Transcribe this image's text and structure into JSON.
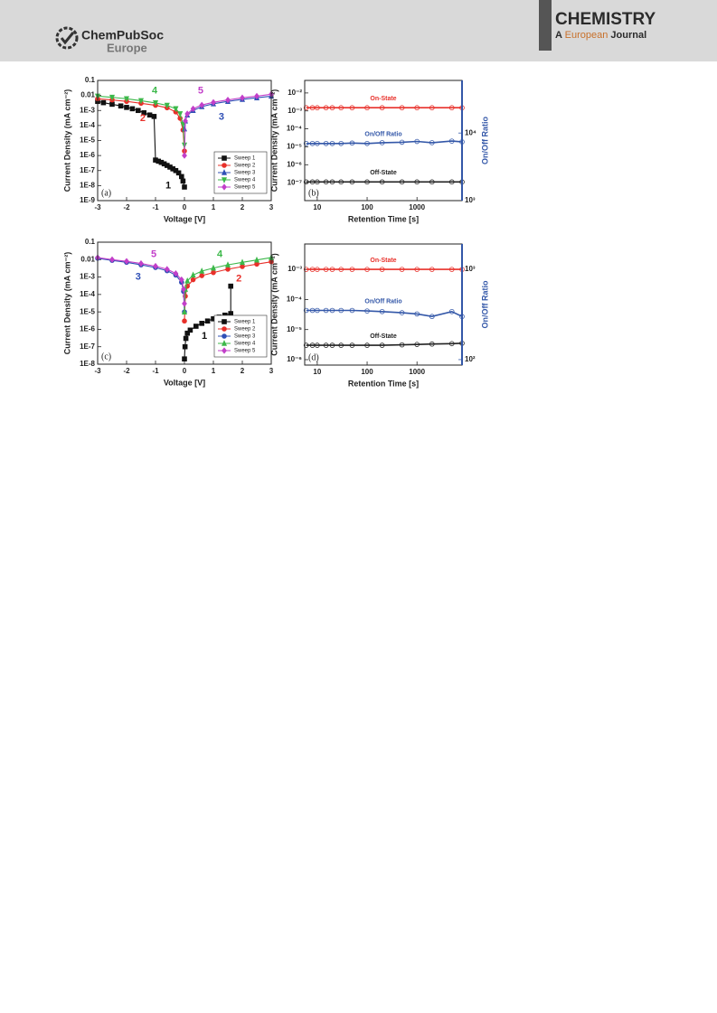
{
  "header": {
    "logo_line1": "ChemPubSoc",
    "logo_line2": "Europe",
    "journal_title": "CHEMISTRY",
    "journal_sub_a": "A",
    "journal_sub_b": "European",
    "journal_sub_c": "Journal"
  },
  "chart_data": [
    {
      "type": "line",
      "panel_label": "(a)",
      "xlabel": "Voltage [V]",
      "ylabel": "Current Density (mA cm⁻²)",
      "xlim": [
        -3,
        3
      ],
      "xticks": [
        -3,
        -2,
        -1,
        0,
        1,
        2,
        3
      ],
      "ylim": [
        1e-09,
        0.1
      ],
      "yscale": "log",
      "yticks": [
        0.1,
        0.01,
        {
          "value": 0.001,
          "label": "1E-3"
        },
        {
          "value": 0.0001,
          "label": "1E-4"
        },
        {
          "value": 1e-05,
          "label": "1E-5"
        },
        {
          "value": 1e-06,
          "label": "1E-6"
        },
        {
          "value": 1e-07,
          "label": "1E-7"
        },
        {
          "value": 1e-08,
          "label": "1E-8"
        },
        {
          "value": 1e-09,
          "label": "1E-9"
        }
      ],
      "legend": "lower right",
      "series": [
        {
          "name": "Sweep 1",
          "color": "#111111",
          "marker": "square",
          "x": [
            0,
            -0.05,
            -0.1,
            -0.2,
            -0.3,
            -0.4,
            -0.5,
            -0.6,
            -0.7,
            -0.8,
            -0.9,
            -1.0,
            -1.05,
            -1.2,
            -1.4,
            -1.6,
            -1.8,
            -2.0,
            -2.2,
            -2.5,
            -2.8,
            -3.0
          ],
          "values": [
            8e-09,
            2e-08,
            4e-08,
            7e-08,
            1e-07,
            1.3e-07,
            1.7e-07,
            2.2e-07,
            2.8e-07,
            3.5e-07,
            4.2e-07,
            5e-07,
            0.0004,
            0.0005,
            0.0007,
            0.001,
            0.0013,
            0.0016,
            0.002,
            0.0026,
            0.0033,
            0.004
          ]
        },
        {
          "name": "Sweep 2",
          "color": "#e8302a",
          "marker": "circle",
          "x": [
            -3,
            -2.5,
            -2,
            -1.5,
            -1,
            -0.6,
            -0.3,
            -0.15,
            -0.05,
            0
          ],
          "values": [
            0.006,
            0.005,
            0.004,
            0.003,
            0.0022,
            0.0015,
            0.0008,
            0.0003,
            5e-05,
            2e-06
          ]
        },
        {
          "name": "Sweep 3",
          "color": "#2f4fb5",
          "marker": "triangle-up",
          "x": [
            0,
            0.03,
            0.1,
            0.3,
            0.6,
            1,
            1.5,
            2,
            2.5,
            3
          ],
          "values": [
            6e-05,
            0.0002,
            0.0005,
            0.001,
            0.0018,
            0.0028,
            0.004,
            0.0055,
            0.007,
            0.009
          ]
        },
        {
          "name": "Sweep 4",
          "color": "#3cb84a",
          "marker": "triangle-down",
          "x": [
            -3,
            -2.5,
            -2,
            -1.5,
            -1,
            -0.6,
            -0.3,
            -0.15,
            -0.05,
            0
          ],
          "values": [
            0.009,
            0.0075,
            0.006,
            0.0045,
            0.0032,
            0.0022,
            0.0013,
            0.0006,
            0.00012,
            5e-06
          ]
        },
        {
          "name": "Sweep 5",
          "color": "#c23fc9",
          "marker": "diamond",
          "x": [
            0,
            0.03,
            0.1,
            0.3,
            0.6,
            1,
            1.5,
            2,
            2.5,
            3
          ],
          "values": [
            1e-06,
            0.0002,
            0.0006,
            0.0013,
            0.0023,
            0.0035,
            0.005,
            0.007,
            0.009,
            0.012
          ]
        }
      ],
      "annotations": [
        {
          "text": "1",
          "x": -0.56,
          "y": 1e-08,
          "color": "#111111"
        },
        {
          "text": "2",
          "x": -1.44,
          "y": 0.0003,
          "color": "#e8302a"
        },
        {
          "text": "3",
          "x": 1.28,
          "y": 0.00035,
          "color": "#2f4fb5"
        },
        {
          "text": "4",
          "x": -1.03,
          "y": 0.02,
          "color": "#3cb84a"
        },
        {
          "text": "5",
          "x": 0.56,
          "y": 0.02,
          "color": "#c23fc9"
        }
      ]
    },
    {
      "type": "retention",
      "panel_label": "(b)",
      "xlabel": "Retention Time [s]",
      "ylabel": "Current Density (mA cm⁻²)",
      "y2label": "On/Off Ratio",
      "xscale": "log",
      "xlim": [
        5.6,
        8000
      ],
      "xticks": [
        10,
        100,
        1000
      ],
      "yscale": "log",
      "ylim": [
        1e-08,
        0.05
      ],
      "yticks": [
        {
          "value": 0.01,
          "label": "10⁻²"
        },
        {
          "value": 0.001,
          "label": "10⁻³"
        },
        {
          "value": 0.0001,
          "label": "10⁻⁴"
        },
        {
          "value": 1e-05,
          "label": "10⁻⁵"
        },
        {
          "value": 1e-06,
          "label": "10⁻⁶"
        },
        {
          "value": 1e-07,
          "label": "10⁻⁷"
        }
      ],
      "y2lim": [
        1000,
        60000
      ],
      "y2ticks": [
        {
          "value": 1000,
          "label": "10³"
        },
        {
          "value": 10000,
          "label": "10⁴"
        }
      ],
      "series": [
        {
          "name": "On-State",
          "color": "#e8302a",
          "x": [
            6,
            8,
            10,
            15,
            20,
            30,
            50,
            100,
            200,
            500,
            1000,
            2000,
            5000,
            8000
          ],
          "values": [
            0.0015,
            0.0015,
            0.0015,
            0.0015,
            0.0015,
            0.0015,
            0.0015,
            0.0015,
            0.0015,
            0.0015,
            0.0015,
            0.0015,
            0.0015,
            0.0015
          ]
        },
        {
          "name": "On/Off Ratio",
          "color": "#3357a8",
          "axis": "y2",
          "x": [
            6,
            8,
            10,
            15,
            20,
            30,
            50,
            100,
            200,
            500,
            1000,
            2000,
            5000,
            8000
          ],
          "values": [
            7000,
            7000,
            7000,
            7000,
            7000,
            7000,
            7100,
            7000,
            7200,
            7300,
            7500,
            7200,
            7600,
            7400
          ]
        },
        {
          "name": "Off-State",
          "color": "#222222",
          "x": [
            6,
            8,
            10,
            15,
            20,
            30,
            50,
            100,
            200,
            500,
            1000,
            2000,
            5000,
            8000
          ],
          "values": [
            1.1e-07,
            1.1e-07,
            1.1e-07,
            1.1e-07,
            1.1e-07,
            1.1e-07,
            1.1e-07,
            1.1e-07,
            1.1e-07,
            1.1e-07,
            1.1e-07,
            1.1e-07,
            1.1e-07,
            1.1e-07
          ]
        }
      ]
    },
    {
      "type": "line",
      "panel_label": "(c)",
      "xlabel": "Voltage [V]",
      "ylabel": "Current Density (mA cm⁻²)",
      "xlim": [
        -3,
        3
      ],
      "xticks": [
        -3,
        -2,
        -1,
        0,
        1,
        2,
        3
      ],
      "ylim": [
        1e-08,
        0.1
      ],
      "yscale": "log",
      "yticks": [
        0.1,
        0.01,
        {
          "value": 0.001,
          "label": "1E-3"
        },
        {
          "value": 0.0001,
          "label": "1E-4"
        },
        {
          "value": 1e-05,
          "label": "1E-5"
        },
        {
          "value": 1e-06,
          "label": "1E-6"
        },
        {
          "value": 1e-07,
          "label": "1E-7"
        },
        {
          "value": 1e-08,
          "label": "1E-8"
        }
      ],
      "legend": "lower right",
      "series": [
        {
          "name": "Sweep 1",
          "color": "#111111",
          "marker": "square",
          "x": [
            0,
            0.02,
            0.05,
            0.1,
            0.2,
            0.4,
            0.6,
            0.8,
            1.0,
            1.2,
            1.4,
            1.6,
            1.6
          ],
          "values": [
            2e-08,
            1e-07,
            3e-07,
            6e-07,
            9e-07,
            1.5e-06,
            2.2e-06,
            3e-06,
            4e-06,
            5e-06,
            6.5e-06,
            8e-06,
            0.0003
          ]
        },
        {
          "name": "Sweep 2",
          "color": "#e8302a",
          "marker": "circle",
          "x": [
            0,
            0.03,
            0.1,
            0.3,
            0.6,
            1,
            1.5,
            2,
            2.5,
            3
          ],
          "values": [
            3e-06,
            8e-05,
            0.0003,
            0.0007,
            0.0012,
            0.0018,
            0.0028,
            0.004,
            0.0055,
            0.0075
          ]
        },
        {
          "name": "Sweep 3",
          "color": "#2f4fb5",
          "marker": "circle",
          "x": [
            -3,
            -2.5,
            -2,
            -1.5,
            -1,
            -0.6,
            -0.3,
            -0.1,
            -0.03,
            0
          ],
          "values": [
            0.012,
            0.009,
            0.007,
            0.005,
            0.0035,
            0.0023,
            0.0013,
            0.0005,
            0.00015,
            1e-05
          ]
        },
        {
          "name": "Sweep 4",
          "color": "#3cb84a",
          "marker": "triangle-up",
          "x": [
            0,
            0.03,
            0.1,
            0.3,
            0.6,
            1,
            1.5,
            2,
            2.5,
            3
          ],
          "values": [
            1e-05,
            0.0002,
            0.0006,
            0.0013,
            0.0022,
            0.0033,
            0.005,
            0.007,
            0.0095,
            0.013
          ]
        },
        {
          "name": "Sweep 5",
          "color": "#c23fc9",
          "marker": "diamond",
          "x": [
            -3,
            -2.5,
            -2,
            -1.5,
            -1,
            -0.6,
            -0.3,
            -0.1,
            -0.03,
            0
          ],
          "values": [
            0.013,
            0.01,
            0.008,
            0.006,
            0.0042,
            0.0028,
            0.0016,
            0.0007,
            0.0002,
            3e-05
          ]
        }
      ],
      "annotations": [
        {
          "text": "1",
          "x": 0.69,
          "y": 4e-07,
          "color": "#111111"
        },
        {
          "text": "2",
          "x": 1.88,
          "y": 0.0008,
          "color": "#e8302a"
        },
        {
          "text": "3",
          "x": -1.6,
          "y": 0.001,
          "color": "#2f4fb5"
        },
        {
          "text": "4",
          "x": 1.22,
          "y": 0.02,
          "color": "#3cb84a"
        },
        {
          "text": "5",
          "x": -1.06,
          "y": 0.02,
          "color": "#c23fc9"
        }
      ]
    },
    {
      "type": "retention",
      "panel_label": "(d)",
      "xlabel": "Retention Time [s]",
      "ylabel": "Current Density (mA cm⁻²)",
      "y2label": "On/Off Ratio",
      "xscale": "log",
      "xlim": [
        5.6,
        8000
      ],
      "xticks": [
        10,
        100,
        1000
      ],
      "yscale": "log",
      "ylim": [
        6.6e-07,
        0.007
      ],
      "yticks": [
        {
          "value": 0.001,
          "label": "10⁻³"
        },
        {
          "value": 0.0001,
          "label": "10⁻⁴"
        },
        {
          "value": 1e-05,
          "label": "10⁻⁵"
        },
        {
          "value": 1e-06,
          "label": "10⁻⁶"
        }
      ],
      "y2lim": [
        87,
        1900
      ],
      "y2ticks": [
        {
          "value": 100,
          "label": "10²"
        },
        {
          "value": 1000,
          "label": "10³"
        }
      ],
      "series": [
        {
          "name": "On-State",
          "color": "#e8302a",
          "x": [
            6,
            8,
            10,
            15,
            20,
            30,
            50,
            100,
            200,
            500,
            1000,
            2000,
            5000,
            8000
          ],
          "values": [
            0.001,
            0.001,
            0.001,
            0.001,
            0.001,
            0.001,
            0.001,
            0.001,
            0.001,
            0.001,
            0.001,
            0.001,
            0.001,
            0.001
          ]
        },
        {
          "name": "On/Off Ratio",
          "color": "#3357a8",
          "axis": "y2",
          "x": [
            6,
            8,
            10,
            15,
            20,
            30,
            50,
            100,
            200,
            500,
            1000,
            2000,
            5000,
            8000
          ],
          "values": [
            350,
            350,
            350,
            350,
            350,
            350,
            350,
            345,
            340,
            330,
            320,
            300,
            340,
            300
          ]
        },
        {
          "name": "Off-State",
          "color": "#222222",
          "x": [
            6,
            8,
            10,
            15,
            20,
            30,
            50,
            100,
            200,
            500,
            1000,
            2000,
            5000,
            8000
          ],
          "values": [
            3e-06,
            3e-06,
            3e-06,
            3e-06,
            3e-06,
            3e-06,
            3e-06,
            3e-06,
            3e-06,
            3.1e-06,
            3.2e-06,
            3.3e-06,
            3.4e-06,
            3.5e-06
          ]
        }
      ]
    }
  ]
}
